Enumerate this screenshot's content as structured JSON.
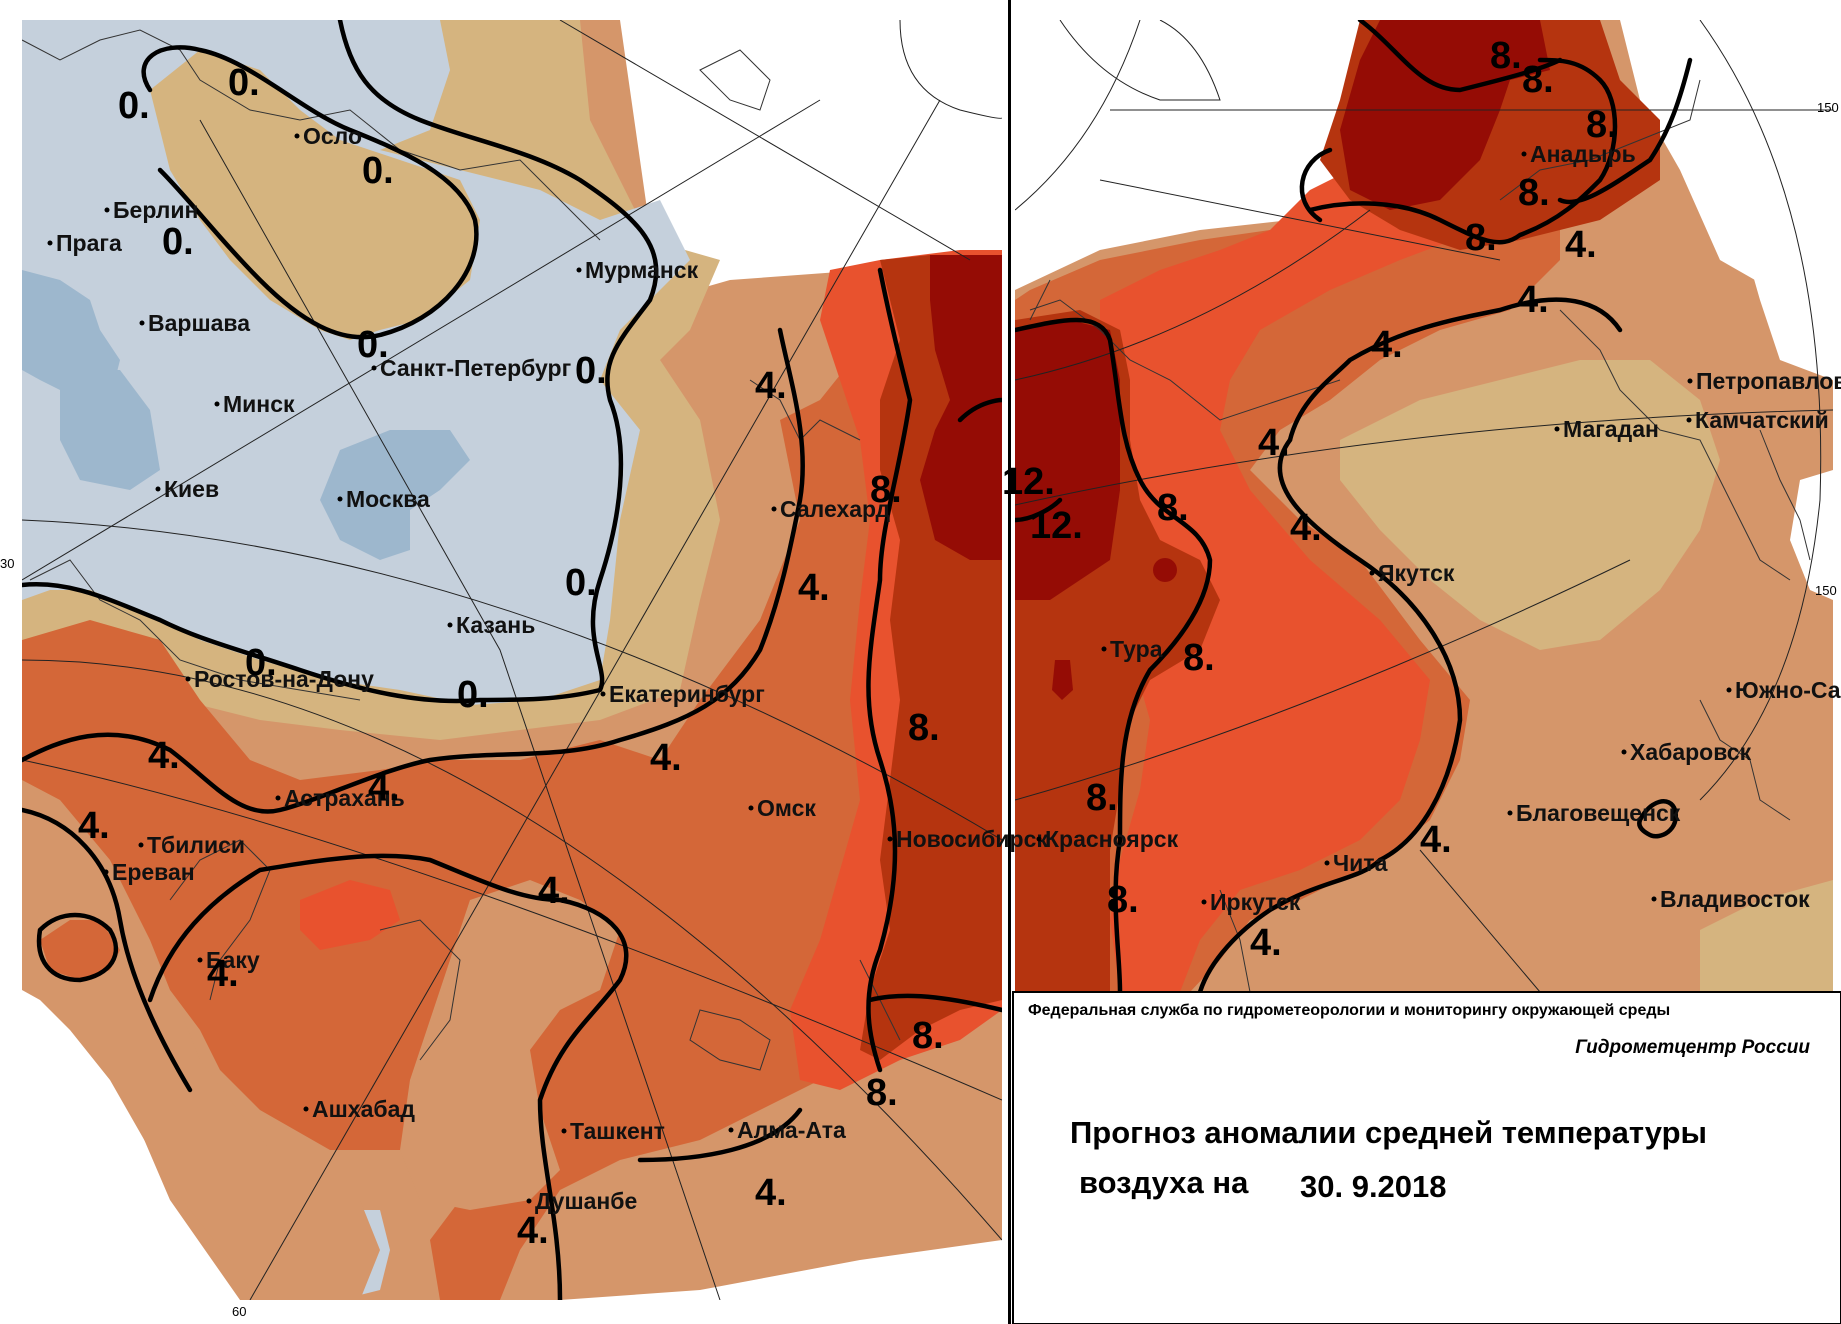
{
  "legend_colors": {
    "below_zero": "#c5d0dc",
    "water": "#9db7cd",
    "a0_2": "#d5b47f",
    "a2_4": "#d5966a",
    "a4_6": "#d46738",
    "a6_8": "#e8522e",
    "a8_10": "#b5340f",
    "a10_plus": "#950c05"
  },
  "left_map": {
    "cities": [
      {
        "id": "oslo",
        "name": "Осло"
      },
      {
        "id": "berlin",
        "name": "Берлин"
      },
      {
        "id": "praga",
        "name": "Прага"
      },
      {
        "id": "varshava",
        "name": "Варшава"
      },
      {
        "id": "murmansk",
        "name": "Мурманск"
      },
      {
        "id": "spb",
        "name": "Санкт-Петербург"
      },
      {
        "id": "minsk",
        "name": "Минск"
      },
      {
        "id": "kiev",
        "name": "Киев"
      },
      {
        "id": "moskva",
        "name": "Москва"
      },
      {
        "id": "salekhard",
        "name": "Салехард"
      },
      {
        "id": "kazan",
        "name": "Казань"
      },
      {
        "id": "rostov",
        "name": "Ростов-на-Дону"
      },
      {
        "id": "ekaterinburg",
        "name": "Екатеринбург"
      },
      {
        "id": "astrakhan",
        "name": "Астрахань"
      },
      {
        "id": "omsk",
        "name": "Омск"
      },
      {
        "id": "tbilisi",
        "name": "Тбилиси"
      },
      {
        "id": "novosibirsk",
        "name": "Новосибирск"
      },
      {
        "id": "erevan",
        "name": "Ереван"
      },
      {
        "id": "baku",
        "name": "Баку"
      },
      {
        "id": "ashkhabad",
        "name": "Ашхабад"
      },
      {
        "id": "tashkent",
        "name": "Ташкент"
      },
      {
        "id": "almaata",
        "name": "Алма-Ата"
      },
      {
        "id": "dushanbe",
        "name": "Душанбе"
      }
    ],
    "isoline_labels": [
      "0.",
      "0.",
      "0.",
      "0.",
      "0.",
      "0.",
      "0.",
      "0.",
      "0.",
      "4.",
      "4.",
      "4.",
      "4.",
      "4.",
      "4.",
      "4.",
      "4.",
      "4.",
      "4.",
      "8.",
      "8.",
      "8.",
      "8."
    ],
    "grid_labels": [
      "30",
      "60"
    ]
  },
  "right_map": {
    "cities": [
      {
        "id": "anadyr",
        "name": "Анадырь"
      },
      {
        "id": "petropavlovsk",
        "name": "Петропавловск"
      },
      {
        "id": "kamchatsky",
        "name": "Камчатский"
      },
      {
        "id": "magadan",
        "name": "Магадан"
      },
      {
        "id": "yakutsk",
        "name": "Якутск"
      },
      {
        "id": "tura",
        "name": "Тура"
      },
      {
        "id": "yuzhno",
        "name": "Южно-Сахалинск"
      },
      {
        "id": "khabarovsk",
        "name": "Хабаровск"
      },
      {
        "id": "blagoveshchensk",
        "name": "Благовещенск"
      },
      {
        "id": "krasnoyarsk",
        "name": "Красноярск"
      },
      {
        "id": "chita",
        "name": "Чита"
      },
      {
        "id": "irkutsk",
        "name": "Иркутск"
      },
      {
        "id": "vladivostok",
        "name": "Владивосток"
      }
    ],
    "isoline_labels": [
      "8.",
      "8.",
      "8.",
      "8.",
      "8.",
      "4.",
      "4.",
      "4.",
      "4.",
      "4.",
      "4.",
      "4.",
      "12.",
      "12.",
      "8.",
      "8.",
      "8.",
      "8."
    ],
    "grid_labels": [
      "150",
      "150"
    ]
  },
  "info": {
    "agency": "Федеральная служба по гидрометеорологии и мониторингу окружающей среды",
    "center": "Гидрометцентр России",
    "title_line1": "Прогноз аномалии средней температуры",
    "title_line2": "воздуха на",
    "date": "30. 9.2018"
  }
}
